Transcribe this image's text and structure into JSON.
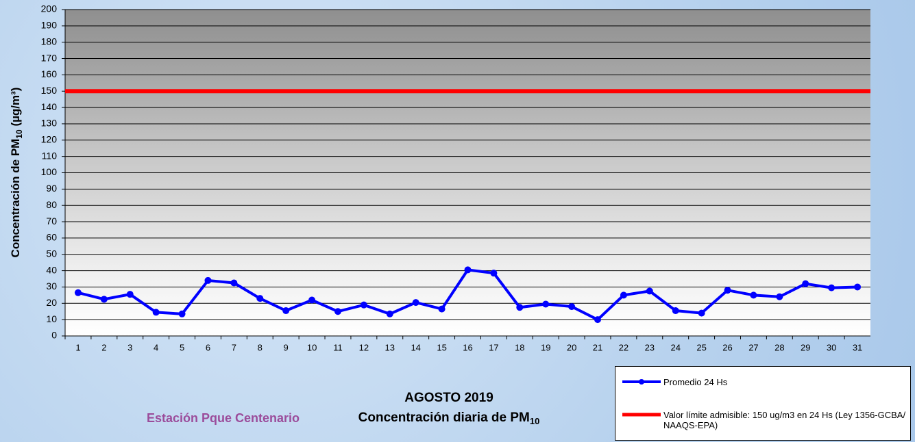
{
  "chart_data": {
    "type": "line",
    "title": "AGOSTO 2019",
    "subtitle": [
      "Concentración diaria de PM",
      "10"
    ],
    "ylabel": [
      "Concentración de PM",
      "10",
      " (µg/m³)"
    ],
    "station": "Estación Pque Centenario",
    "categories": [
      "1",
      "2",
      "3",
      "4",
      "5",
      "6",
      "7",
      "8",
      "9",
      "10",
      "11",
      "12",
      "13",
      "14",
      "15",
      "16",
      "17",
      "18",
      "19",
      "20",
      "21",
      "22",
      "23",
      "24",
      "25",
      "26",
      "27",
      "28",
      "29",
      "30",
      "31"
    ],
    "series": [
      {
        "name": "Promedio 24 Hs",
        "color": "#0000ff",
        "values": [
          26.5,
          22.5,
          25.5,
          14.5,
          13.5,
          34,
          32.5,
          23,
          15.5,
          22,
          15,
          19,
          13.5,
          20.5,
          16.5,
          40.5,
          38.5,
          17.5,
          19.5,
          18,
          10,
          25,
          27.5,
          15.5,
          14,
          28,
          25,
          24,
          32,
          29.5,
          30
        ]
      }
    ],
    "reference_line": {
      "name": "Valor límite admisible: 150 ug/m3 en 24 Hs (Ley 1356-GCBA/ NAAQS-EPA)",
      "value": 150,
      "color": "#ff0000"
    },
    "ylim": [
      0,
      200
    ],
    "yticks": [
      0,
      10,
      20,
      30,
      40,
      50,
      60,
      70,
      80,
      90,
      100,
      110,
      120,
      130,
      140,
      150,
      160,
      170,
      180,
      190,
      200
    ],
    "grid": true
  }
}
